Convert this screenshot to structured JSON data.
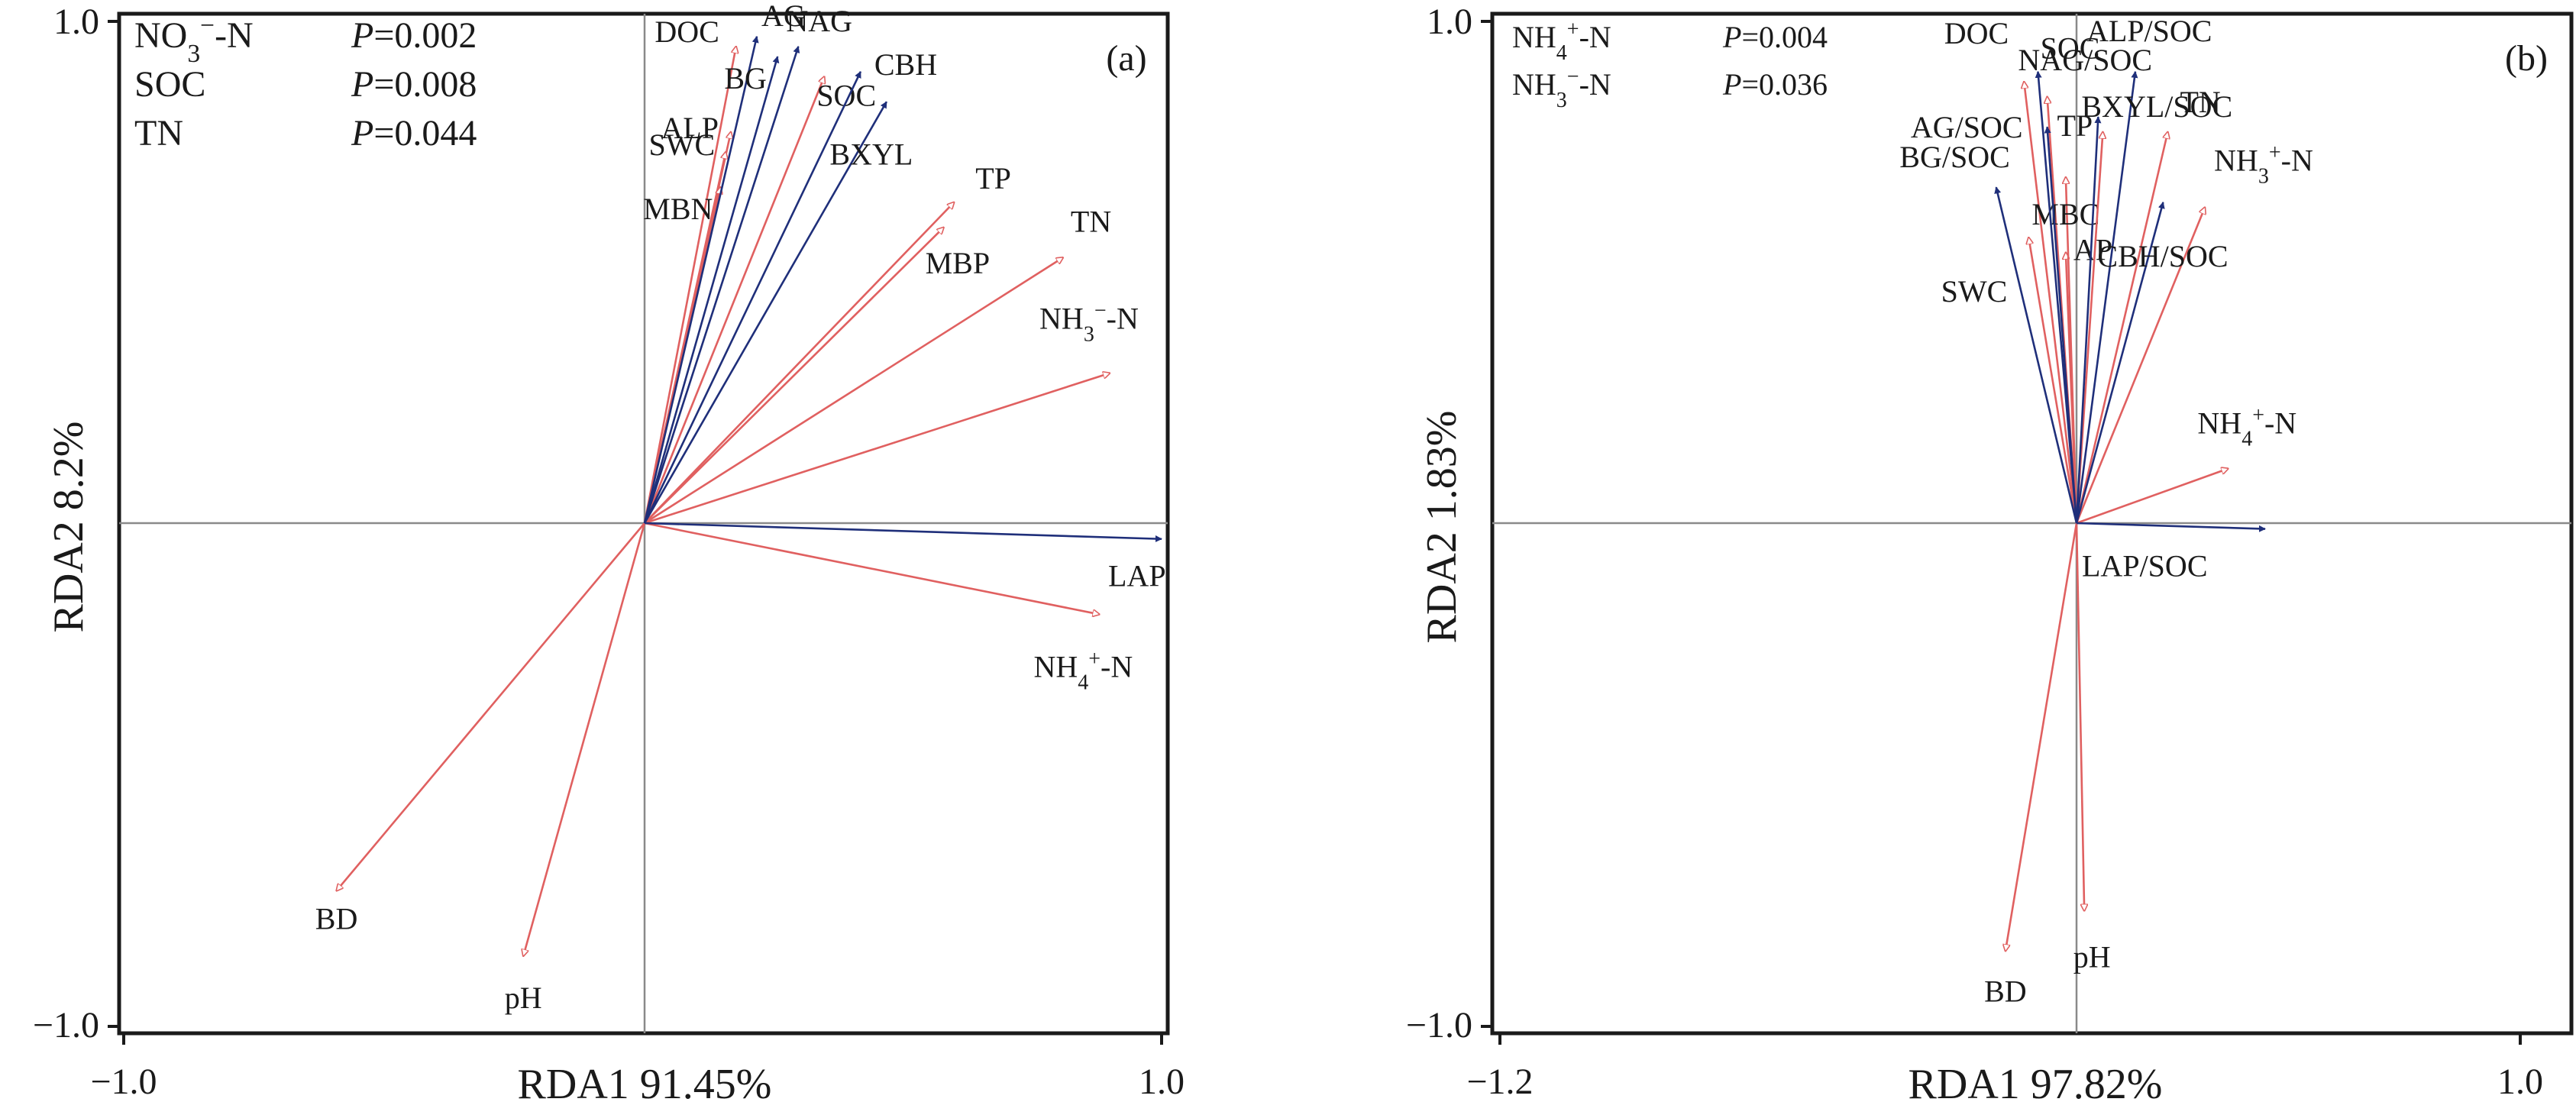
{
  "colors": {
    "environment": "#e06060",
    "enzyme": "#1f2f7a",
    "frame": "#1a1a1a",
    "zero_line": "#8a8a8a"
  },
  "chart_data": [
    {
      "type": "biplot",
      "panel_label": "(a)",
      "xlabel": "RDA1 91.45%",
      "ylabel": "RDA2 8.2%",
      "xlim": [
        -1.0,
        1.0
      ],
      "ylim": [
        -1.0,
        1.0
      ],
      "x_tick_labels": [
        "−1.0",
        "1.0"
      ],
      "y_tick_labels": [
        "1.0",
        "−1.0"
      ],
      "significance": [
        {
          "variable": "NO3−-N",
          "p": "P=0.002"
        },
        {
          "variable": "SOC",
          "p": "P=0.008"
        },
        {
          "variable": "TN",
          "p": "P=0.044"
        }
      ],
      "environment_vectors": [
        {
          "label": "DOC",
          "x": 0.18,
          "y": 0.95
        },
        {
          "label": "ALP",
          "x": 0.17,
          "y": 0.78
        },
        {
          "label": "SWC",
          "x": 0.16,
          "y": 0.74
        },
        {
          "label": "MBN",
          "x": 0.15,
          "y": 0.67
        },
        {
          "label": "SOC",
          "x": 0.35,
          "y": 0.89
        },
        {
          "label": "TP",
          "x": 0.6,
          "y": 0.64
        },
        {
          "label": "MBP",
          "x": 0.58,
          "y": 0.59
        },
        {
          "label": "TN",
          "x": 0.81,
          "y": 0.53
        },
        {
          "label": "NH3−-N",
          "x": 0.9,
          "y": 0.3
        },
        {
          "label": "NH4+-N",
          "x": 0.88,
          "y": -0.18
        },
        {
          "label": "BD",
          "x": -0.59,
          "y": -0.73
        },
        {
          "label": "pH",
          "x": -0.23,
          "y": -0.86
        }
      ],
      "enzyme_vectors": [
        {
          "label": "AG",
          "x": 0.22,
          "y": 0.97
        },
        {
          "label": "NAG",
          "x": 0.3,
          "y": 0.95
        },
        {
          "label": "BG",
          "x": 0.26,
          "y": 0.93
        },
        {
          "label": "CBH",
          "x": 0.42,
          "y": 0.9
        },
        {
          "label": "BXYL",
          "x": 0.47,
          "y": 0.84
        },
        {
          "label": "LAP",
          "x": 1.0,
          "y": -0.03
        }
      ]
    },
    {
      "type": "biplot",
      "panel_label": "(b)",
      "xlabel": "RDA1 97.82%",
      "ylabel": "RDA2 1.83%",
      "xlim": [
        -1.2,
        1.0
      ],
      "ylim": [
        -1.0,
        1.0
      ],
      "x_tick_labels": [
        "−1.2",
        "1.0"
      ],
      "y_tick_labels": [
        "1.0",
        "−1.0"
      ],
      "significance": [
        {
          "variable": "NH4+-N",
          "p": "P=0.004"
        },
        {
          "variable": "NH3−-N",
          "p": "P=0.036"
        }
      ],
      "environment_vectors": [
        {
          "label": "DOC",
          "x": -0.07,
          "y": 0.88
        },
        {
          "label": "SOC",
          "x": -0.02,
          "y": 0.85
        },
        {
          "label": "SWC",
          "x": -0.06,
          "y": 0.57
        },
        {
          "label": "AP",
          "x": 0.02,
          "y": 0.54
        },
        {
          "label": "MBC",
          "x": 0.02,
          "y": 0.69
        },
        {
          "label": "TP",
          "x": 0.1,
          "y": 0.78
        },
        {
          "label": "TN",
          "x": 0.24,
          "y": 0.78
        },
        {
          "label": "NH3+-N",
          "x": 0.32,
          "y": 0.63
        },
        {
          "label": "NH4+-N",
          "x": 0.37,
          "y": 0.11
        },
        {
          "label": "BD",
          "x": -0.11,
          "y": -0.85
        },
        {
          "label": "pH",
          "x": 0.06,
          "y": -0.77
        }
      ],
      "enzyme_vectors": [
        {
          "label": "AG/SOC",
          "x": -0.02,
          "y": 0.79
        },
        {
          "label": "BG/SOC",
          "x": -0.13,
          "y": 0.67
        },
        {
          "label": "NAG/SOC",
          "x": -0.04,
          "y": 0.9
        },
        {
          "label": "ALP/SOC",
          "x": 0.17,
          "y": 0.9
        },
        {
          "label": "BXYL/SOC",
          "x": 0.09,
          "y": 0.81
        },
        {
          "label": "CBH/SOC",
          "x": 0.23,
          "y": 0.64
        },
        {
          "label": "LAP/SOC",
          "x": 0.45,
          "y": -0.01
        }
      ]
    }
  ]
}
